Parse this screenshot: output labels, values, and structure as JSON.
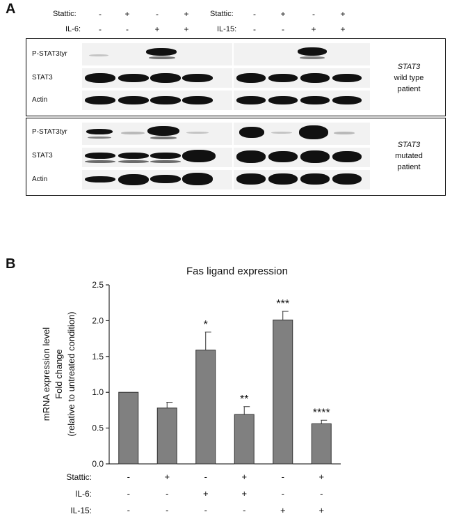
{
  "panel_a": {
    "letter": "A",
    "header_left": {
      "rows": [
        {
          "label": "Stattic:",
          "signs": [
            "-",
            "+",
            "-",
            "+"
          ]
        },
        {
          "label": "IL-6:",
          "signs": [
            "-",
            "-",
            "+",
            "+"
          ]
        }
      ]
    },
    "header_right": {
      "rows": [
        {
          "label": "Stattic:",
          "signs": [
            "-",
            "+",
            "-",
            "+"
          ]
        },
        {
          "label": "IL-15:",
          "signs": [
            "-",
            "-",
            "+",
            "+"
          ]
        }
      ]
    },
    "blot_rows": [
      "P-STAT3tyr",
      "STAT3",
      "Actin"
    ],
    "group1": {
      "label_italic": "STAT3",
      "label_rest_1": "wild type",
      "label_rest_2": "patient"
    },
    "group2": {
      "label_italic": "STAT3",
      "label_rest_1": "mutated",
      "label_rest_2": "patient"
    }
  },
  "panel_b": {
    "letter": "B"
  },
  "chart_data": {
    "type": "bar",
    "title": "Fas ligand expression",
    "ylabel_lines": [
      "mRNA expression level",
      "Fold change",
      "(relative to untreated condition)"
    ],
    "ylim": [
      0,
      2.5
    ],
    "yticks": [
      "0.0",
      "0.5",
      "1.0",
      "1.5",
      "2.0",
      "2.5"
    ],
    "values": [
      1.0,
      0.78,
      1.59,
      0.69,
      2.01,
      0.56
    ],
    "errors": [
      0.0,
      0.08,
      0.25,
      0.11,
      0.12,
      0.05
    ],
    "significance": [
      "",
      "",
      "*",
      "**",
      "***",
      "****"
    ],
    "condition_rows": [
      {
        "label": "Stattic:",
        "signs": [
          "-",
          "+",
          "-",
          "+",
          "-",
          "+"
        ]
      },
      {
        "label": "IL-6:",
        "signs": [
          "-",
          "-",
          "+",
          "+",
          "-",
          "-"
        ]
      },
      {
        "label": "IL-15:",
        "signs": [
          "-",
          "-",
          "-",
          "-",
          "+",
          "+"
        ]
      }
    ],
    "bar_color": "#808080",
    "grid": false
  }
}
